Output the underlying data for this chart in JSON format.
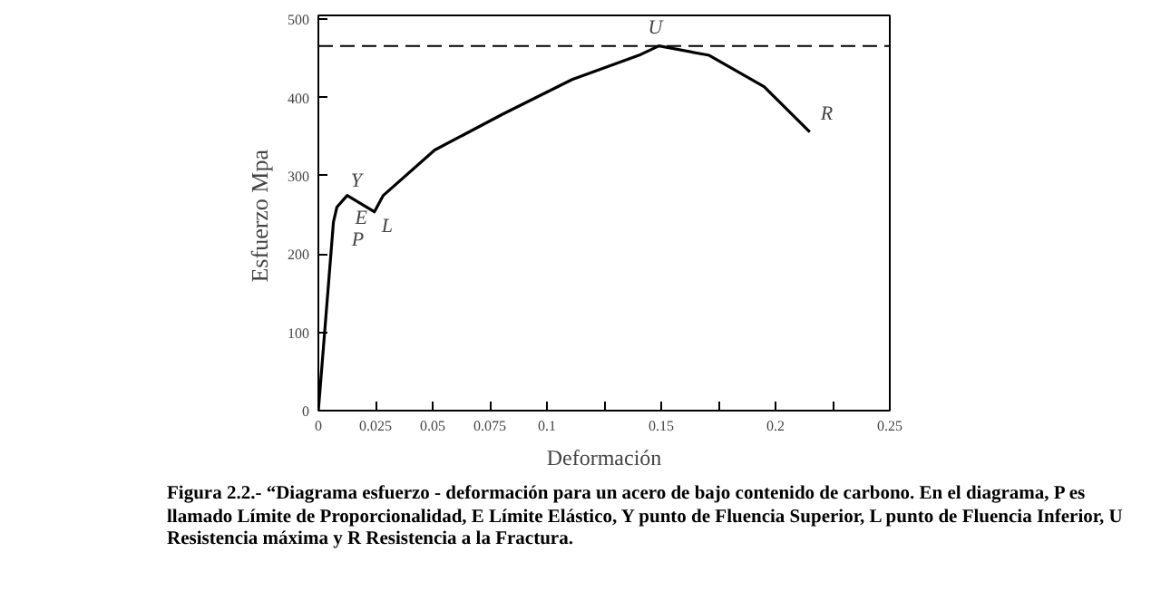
{
  "chart_data": {
    "type": "line",
    "xlabel": "Deformación",
    "ylabel": "Esfuerzo  Mpa",
    "x": [
      0,
      0.0066,
      0.0081,
      0.0126,
      0.0245,
      0.0284,
      0.0509,
      0.0808,
      0.111,
      0.141,
      0.149,
      0.171,
      0.195,
      0.215
    ],
    "series": [
      {
        "color": "#000000",
        "values": [
          0,
          241,
          260,
          275,
          254,
          275,
          333,
          379,
          423,
          455,
          466,
          454,
          414,
          356
        ]
      }
    ],
    "xlim": [
      0,
      0.25
    ],
    "ylim": [
      0,
      505
    ],
    "xticks": [
      0,
      0.025,
      0.05,
      0.075,
      0.1,
      {
        "value": 0.125,
        "label": null
      },
      0.15,
      {
        "value": 0.175,
        "label": null
      },
      0.2,
      {
        "value": 0.225,
        "label": null
      },
      0.25
    ],
    "yticks": [
      0,
      100,
      200,
      300,
      400,
      500
    ],
    "ref_lines": [
      {
        "axis": "y",
        "value": 466,
        "line_style": "dashed"
      }
    ],
    "grid": false,
    "annotations": [
      {
        "text": "P",
        "x": 0.0066,
        "y": 241
      },
      {
        "text": "E",
        "x": 0.0081,
        "y": 260
      },
      {
        "text": "Y",
        "x": 0.0126,
        "y": 275
      },
      {
        "text": "L",
        "x": 0.0245,
        "y": 254
      },
      {
        "text": "U",
        "x": 0.149,
        "y": 466
      },
      {
        "text": "R",
        "x": 0.215,
        "y": 356
      },
      "Figura  2.2.- “Diagrama esfuerzo - deformación para un acero de bajo contenido de carbono. En el diagrama, P es llamado Límite de Proporcionalidad, E Límite Elástico, Y punto de Fluencia Superior,  L punto de Fluencia Inferior, U  Resistencia máxima y R Resistencia a la Fractura."
    ]
  }
}
